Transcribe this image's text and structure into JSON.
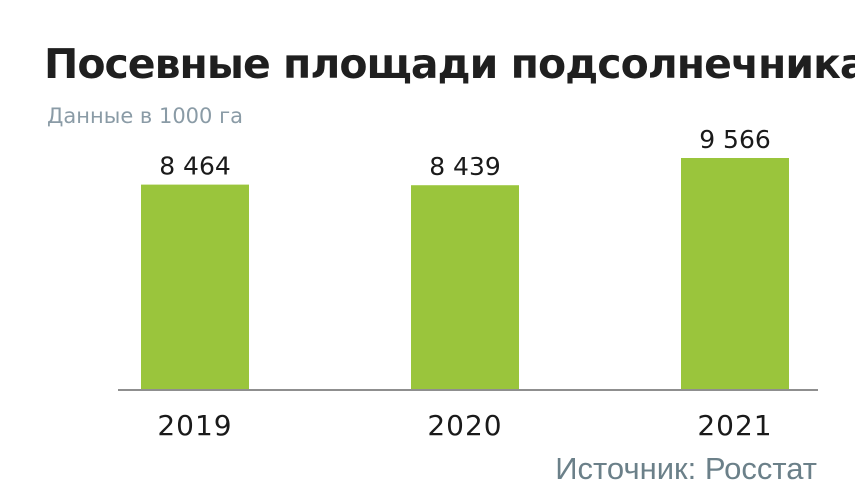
{
  "chart_data": {
    "type": "bar",
    "title": "Посевные площади подсолнечника",
    "subtitle": "Данные в 1000 га",
    "categories": [
      "2019",
      "2020",
      "2021"
    ],
    "values": [
      8464,
      8439,
      9566
    ],
    "value_labels": [
      "8 464",
      "8 439",
      "9 566"
    ],
    "ylim": [
      0,
      9566
    ],
    "bar_color": "#9ac53c",
    "grid": false,
    "source": "Источник: Росстат"
  }
}
